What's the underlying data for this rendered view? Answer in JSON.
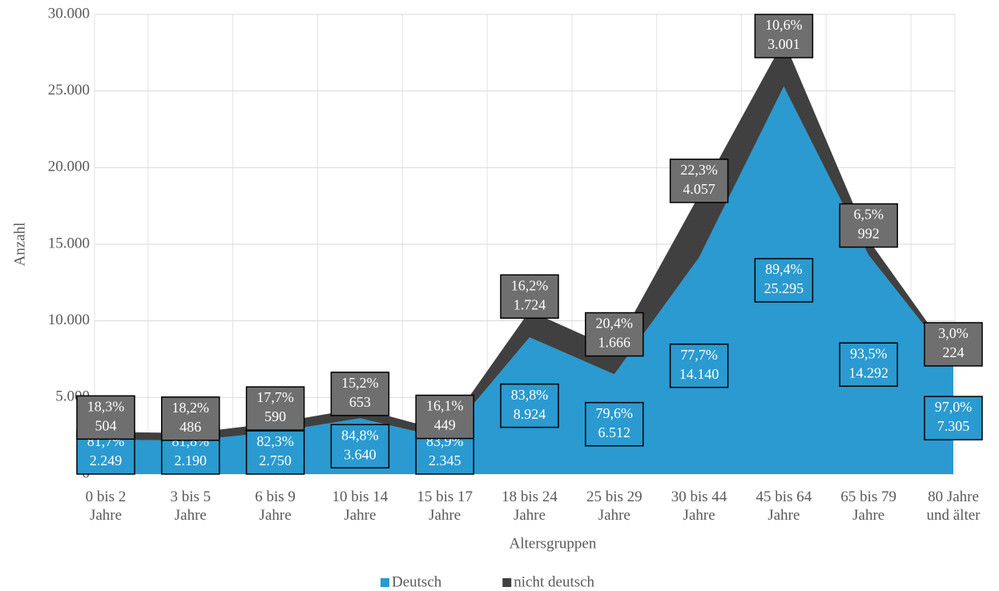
{
  "chart_data": {
    "type": "stacked_area",
    "x_label": "Altersgruppen",
    "y_label": "Anzahl",
    "categories": [
      "0 bis 2\nJahre",
      "3 bis 5\nJahre",
      "6 bis 9\nJahre",
      "10 bis 14\nJahre",
      "15 bis 17\nJahre",
      "18 bis 24\nJahre",
      "25 bis 29\nJahre",
      "30 bis 44\nJahre",
      "45 bis 64\nJahre",
      "65 bis 79\nJahre",
      "80 Jahre\nund älter"
    ],
    "series": [
      {
        "name": "Deutsch",
        "color": "#2a9ad0",
        "values": [
          2249,
          2190,
          2750,
          3640,
          2345,
          8924,
          6512,
          14140,
          25295,
          14292,
          7305
        ],
        "value_labels": [
          "2.249",
          "2.190",
          "2.750",
          "3.640",
          "2.345",
          "8.924",
          "6.512",
          "14.140",
          "25.295",
          "14.292",
          "7.305"
        ],
        "share_labels": [
          "81,7%",
          "81,8%",
          "82,3%",
          "84,8%",
          "83,9%",
          "83,8%",
          "79,6%",
          "77,7%",
          "89,4%",
          "93,5%",
          "97,0%"
        ]
      },
      {
        "name": "nicht deutsch",
        "color": "#404040",
        "values": [
          504,
          486,
          590,
          653,
          449,
          1724,
          1666,
          4057,
          3001,
          992,
          224
        ],
        "value_labels": [
          "504",
          "486",
          "590",
          "653",
          "449",
          "1.724",
          "1.666",
          "4.057",
          "3.001",
          "992",
          "224"
        ],
        "share_labels": [
          "18,3%",
          "18,2%",
          "17,7%",
          "15,2%",
          "16,1%",
          "16,2%",
          "20,4%",
          "22,3%",
          "10,6%",
          "6,5%",
          "3,0%"
        ]
      }
    ],
    "ylim": [
      0,
      30000
    ],
    "yticks": [
      0,
      {
        "value": 5000,
        "label": "5.000"
      },
      {
        "value": 10000,
        "label": "10.000"
      },
      {
        "value": 15000,
        "label": "15.000"
      },
      {
        "value": 20000,
        "label": "20.000"
      },
      {
        "value": 25000,
        "label": "25.000"
      },
      {
        "value": 30000,
        "label": "30.000"
      }
    ],
    "grid": true,
    "legend": "bottom"
  }
}
